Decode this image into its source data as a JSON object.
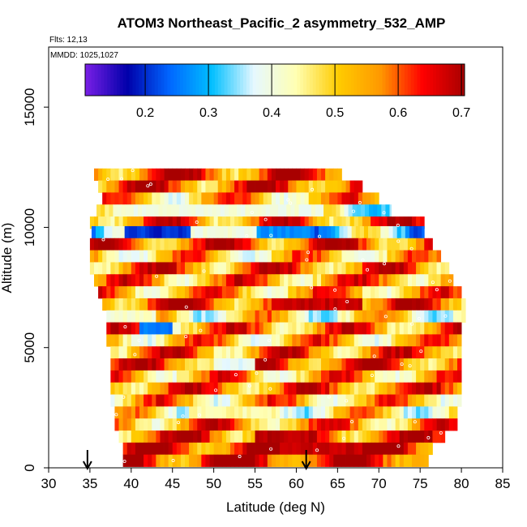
{
  "chart_data": {
    "type": "heatmap",
    "title": "ATOM3 Northeast_Pacific_2 asymmetry_532_AMP",
    "flights_label": "Flts: 12,13",
    "dates_label": "MMDD: 1025,1027",
    "xlabel": "Latitude (deg N)",
    "ylabel": "Altitude (m)",
    "xlim": [
      30,
      85
    ],
    "ylim": [
      0,
      17500
    ],
    "x_ticks": [
      30,
      35,
      40,
      45,
      50,
      55,
      60,
      65,
      70,
      75,
      80,
      85
    ],
    "y_ticks": [
      0,
      5000,
      10000,
      15000
    ],
    "colorbar": {
      "min": 0.105,
      "max": 0.705,
      "ticks": [
        0.2,
        0.3,
        0.4,
        0.5,
        0.6,
        0.7
      ],
      "colors": [
        "#7a1fe6",
        "#0000aa",
        "#0066ff",
        "#00bfff",
        "#e6f8ff",
        "#ffffb3",
        "#ffcc00",
        "#ff9900",
        "#ff0000",
        "#a80000"
      ]
    },
    "arrows_latitude": [
      34.7,
      61.2
    ],
    "rows": [
      {
        "alt": 12200,
        "lat_start": 35.5,
        "lat_end": 65.5,
        "base": 0.61
      },
      {
        "alt": 11700,
        "lat_start": 36.0,
        "lat_end": 68.0,
        "base": 0.6
      },
      {
        "alt": 11200,
        "lat_start": 36.5,
        "lat_end": 70.0,
        "base": 0.52
      },
      {
        "alt": 10700,
        "lat_start": 35.8,
        "lat_end": 71.5,
        "base": 0.42
      },
      {
        "alt": 10200,
        "lat_start": 35.0,
        "lat_end": 75.5,
        "base": 0.58
      },
      {
        "alt": 9800,
        "lat_start": 35.2,
        "lat_end": 75.5,
        "base": 0.35
      },
      {
        "alt": 9300,
        "lat_start": 35.0,
        "lat_end": 76.5,
        "base": 0.6
      },
      {
        "alt": 8800,
        "lat_start": 35.0,
        "lat_end": 77.5,
        "base": 0.5
      },
      {
        "alt": 8300,
        "lat_start": 35.0,
        "lat_end": 78.5,
        "base": 0.58
      },
      {
        "alt": 7800,
        "lat_start": 35.5,
        "lat_end": 79.0,
        "base": 0.55
      },
      {
        "alt": 7300,
        "lat_start": 36.0,
        "lat_end": 80.0,
        "base": 0.53
      },
      {
        "alt": 6800,
        "lat_start": 36.5,
        "lat_end": 80.5,
        "base": 0.6
      },
      {
        "alt": 6300,
        "lat_start": 37.0,
        "lat_end": 80.5,
        "base": 0.47
      },
      {
        "alt": 5800,
        "lat_start": 37.0,
        "lat_end": 80.0,
        "base": 0.56
      },
      {
        "alt": 5300,
        "lat_start": 37.0,
        "lat_end": 80.0,
        "base": 0.52
      },
      {
        "alt": 4800,
        "lat_start": 37.5,
        "lat_end": 80.0,
        "base": 0.57
      },
      {
        "alt": 4300,
        "lat_start": 37.5,
        "lat_end": 80.0,
        "base": 0.6
      },
      {
        "alt": 3800,
        "lat_start": 37.5,
        "lat_end": 80.0,
        "base": 0.53
      },
      {
        "alt": 3300,
        "lat_start": 37.5,
        "lat_end": 80.0,
        "base": 0.58
      },
      {
        "alt": 2800,
        "lat_start": 37.5,
        "lat_end": 80.0,
        "base": 0.52
      },
      {
        "alt": 2300,
        "lat_start": 38.0,
        "lat_end": 79.5,
        "base": 0.47
      },
      {
        "alt": 1800,
        "lat_start": 38.0,
        "lat_end": 79.5,
        "base": 0.55
      },
      {
        "alt": 1300,
        "lat_start": 38.5,
        "lat_end": 78.0,
        "base": 0.6
      },
      {
        "alt": 800,
        "lat_start": 39.0,
        "lat_end": 76.5,
        "base": 0.63
      },
      {
        "alt": 300,
        "lat_start": 39.0,
        "lat_end": 76.0,
        "base": 0.64
      }
    ],
    "features": [
      {
        "alt": 9800,
        "lat_from": 39.0,
        "lat_to": 47.0,
        "value": 0.2
      },
      {
        "alt": 9800,
        "lat_from": 47.0,
        "lat_to": 55.0,
        "value": 0.4
      },
      {
        "alt": 9800,
        "lat_from": 55.0,
        "lat_to": 62.0,
        "value": 0.27
      },
      {
        "alt": 10700,
        "lat_from": 38.0,
        "lat_to": 63.0,
        "value": 0.4
      },
      {
        "alt": 6300,
        "lat_from": 38.0,
        "lat_to": 43.0,
        "value": 0.42
      },
      {
        "alt": 5800,
        "lat_from": 41.0,
        "lat_to": 45.0,
        "value": 0.25
      },
      {
        "alt": 4300,
        "lat_from": 50.0,
        "lat_to": 55.0,
        "value": 0.38
      },
      {
        "alt": 2300,
        "lat_from": 47.0,
        "lat_to": 58.0,
        "value": 0.44
      },
      {
        "alt": 6800,
        "lat_from": 57.0,
        "lat_to": 68.0,
        "value": 0.68
      },
      {
        "alt": 1300,
        "lat_from": 55.0,
        "lat_to": 62.0,
        "value": 0.69
      },
      {
        "alt": 800,
        "lat_from": 58.0,
        "lat_to": 68.0,
        "value": 0.68
      }
    ]
  }
}
